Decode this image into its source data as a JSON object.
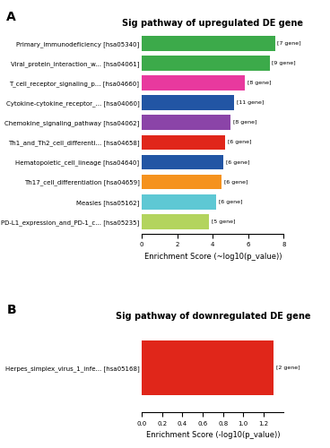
{
  "chart_data": [
    {
      "type": "bar",
      "orientation": "horizontal",
      "title": "Sig pathway of upregulated DE gene",
      "x_label": "Enrichment Score (~log10(p_value))",
      "annotations": [
        "A"
      ],
      "categories": [
        "PD-L1_expression_and_PD-1_c... [hsa05235]",
        "Measles [hsa05162]",
        "Th17_cell_differentiation [hsa04659]",
        "Hematopoietic_cell_lineage [hsa04640]",
        "Th1_and_Th2_cell_differenti... [hsa04658]",
        "Chemokine_signaling_pathway [hsa04062]",
        "Cytokine-cytokine_receptor_... [hsa04060]",
        "T_cell_receptor_signaling_p... [hsa04660]",
        "Viral_protein_interaction_w... [hsa04061]",
        "Primary_immunodeficiency [hsa05340]"
      ],
      "values": [
        3.8,
        4.2,
        4.5,
        4.6,
        4.7,
        5.0,
        5.2,
        5.8,
        7.2,
        7.5
      ],
      "gene_counts": [
        "[5 gene]",
        "[6 gene]",
        "[6 gene]",
        "[6 gene]",
        "[6 gene]",
        "[8 gene]",
        "[11 gene]",
        "[8 gene]",
        "[9 gene]",
        "[7 gene]"
      ],
      "colors": [
        "#b3d45e",
        "#5ec8d4",
        "#f5921e",
        "#2255a4",
        "#e0261a",
        "#8b44a8",
        "#2255a4",
        "#e8399e",
        "#3caa4a",
        "#3caa4a"
      ],
      "xlim": [
        0,
        8
      ],
      "xticks": [
        0,
        2,
        4,
        6,
        8
      ]
    },
    {
      "type": "bar",
      "orientation": "horizontal",
      "title": "Sig pathway of downregulated DE gene",
      "x_label": "Enrichment Score (-log10(p_value))",
      "annotations": [
        "B"
      ],
      "categories": [
        "Herpes_simplex_virus_1_infe... [hsa05168]"
      ],
      "values": [
        1.3
      ],
      "gene_counts": [
        "[2 gene]"
      ],
      "colors": [
        "#e0261a"
      ],
      "xlim": [
        0.0,
        1.4
      ],
      "xticks": [
        0.0,
        0.2,
        0.4,
        0.6,
        0.8,
        1.0,
        1.2
      ]
    }
  ]
}
